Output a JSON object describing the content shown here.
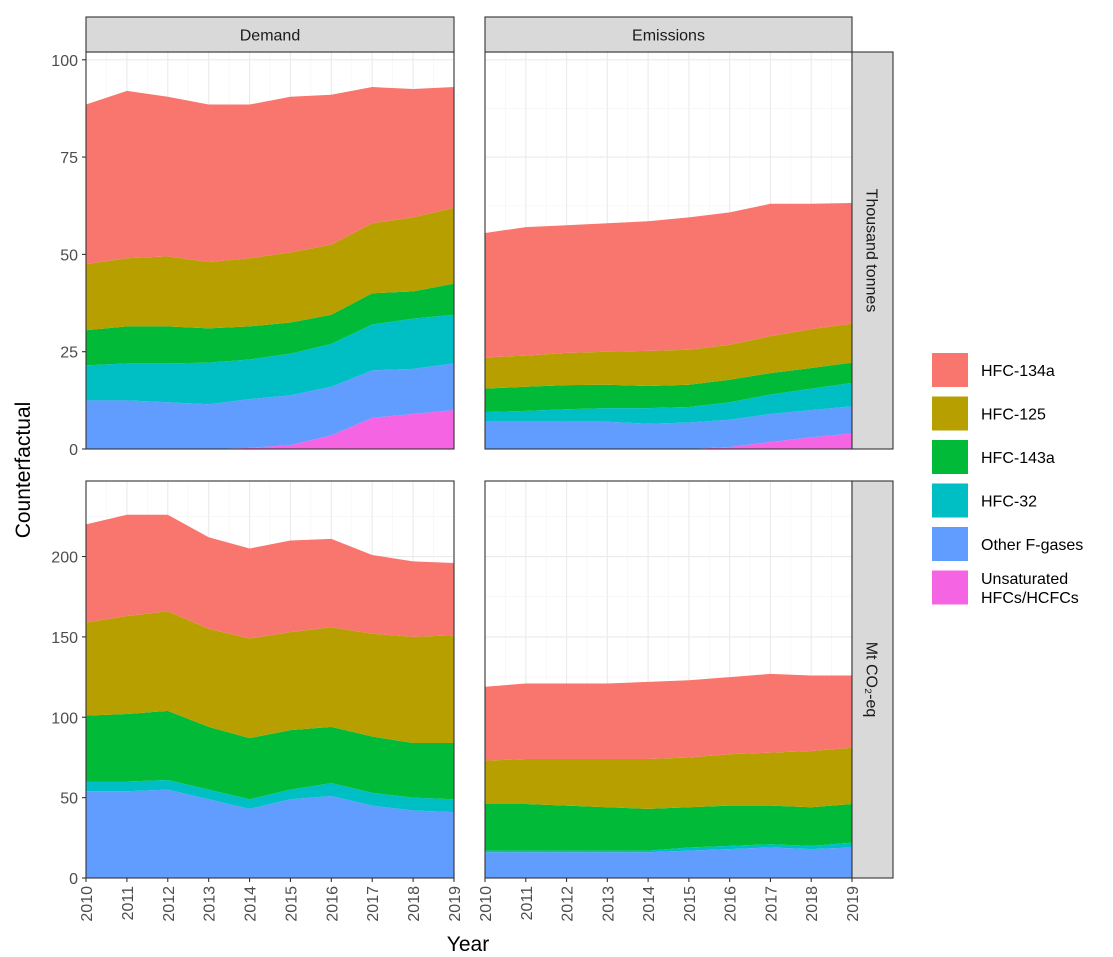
{
  "chart_data": {
    "type": "area",
    "stacked": true,
    "xlabel": "Year",
    "ylabel": "Counterfactual",
    "columns": [
      "Demand",
      "Emissions"
    ],
    "rows": [
      "Thousand tonnes",
      "Mt CO₂-eq"
    ],
    "x": [
      2010,
      2011,
      2012,
      2013,
      2014,
      2015,
      2016,
      2017,
      2018,
      2019
    ],
    "xlim": [
      2010,
      2019
    ],
    "grid": true,
    "legend_position": "right",
    "colors": {
      "HFC-134a": "#F8766D",
      "HFC-125": "#B79F00",
      "HFC-143a": "#00BA38",
      "HFC-32": "#00BFC4",
      "Other F-gases": "#619CFF",
      "Unsaturated HFCs/HCFCs": "#F564E3"
    },
    "legend": [
      {
        "key": "HFC-134a",
        "lines": [
          "HFC-134a"
        ]
      },
      {
        "key": "HFC-125",
        "lines": [
          "HFC-125"
        ]
      },
      {
        "key": "HFC-143a",
        "lines": [
          "HFC-143a"
        ]
      },
      {
        "key": "HFC-32",
        "lines": [
          "HFC-32"
        ]
      },
      {
        "key": "Other F-gases",
        "lines": [
          "Other F-gases"
        ]
      },
      {
        "key": "Unsaturated HFCs/HCFCs",
        "lines": [
          "Unsaturated",
          "HFCs/HCFCs"
        ]
      }
    ],
    "panels": [
      {
        "row": "Thousand tonnes",
        "col": "Demand",
        "ylim": [
          0,
          102
        ],
        "yticks": [
          0,
          25,
          50,
          75,
          100
        ],
        "series": [
          {
            "name": "Unsaturated HFCs/HCFCs",
            "values": [
              0,
              0,
              0,
              0,
              0.3,
              1.0,
              3.5,
              8.0,
              9.0,
              10.0
            ]
          },
          {
            "name": "Other F-gases",
            "values": [
              12.5,
              12.5,
              12.0,
              11.5,
              12.5,
              12.8,
              12.5,
              12.2,
              11.6,
              12.0
            ]
          },
          {
            "name": "HFC-32",
            "values": [
              9.0,
              9.5,
              10.0,
              10.7,
              10.2,
              10.7,
              11.0,
              11.8,
              12.9,
              12.5
            ]
          },
          {
            "name": "HFC-143a",
            "values": [
              9.0,
              9.5,
              9.5,
              8.8,
              8.5,
              8.0,
              7.5,
              8.0,
              7.0,
              8.0
            ]
          },
          {
            "name": "HFC-125",
            "values": [
              17.0,
              17.5,
              18.0,
              17.0,
              17.5,
              18.0,
              18.0,
              18.0,
              19.0,
              19.5
            ]
          },
          {
            "name": "HFC-134a",
            "values": [
              41.0,
              43.0,
              41.0,
              40.5,
              39.5,
              40.0,
              38.5,
              35.0,
              33.0,
              31.0
            ]
          }
        ]
      },
      {
        "row": "Thousand tonnes",
        "col": "Emissions",
        "ylim": [
          0,
          102
        ],
        "yticks": [
          0,
          25,
          50,
          75,
          100
        ],
        "series": [
          {
            "name": "Unsaturated HFCs/HCFCs",
            "values": [
              0,
              0,
              0,
              0,
              0,
              0,
              0.5,
              1.8,
              3.0,
              4.0
            ]
          },
          {
            "name": "Other F-gases",
            "values": [
              7.0,
              7.0,
              7.0,
              7.0,
              6.5,
              6.8,
              7.0,
              7.2,
              7.0,
              7.0
            ]
          },
          {
            "name": "HFC-32",
            "values": [
              2.5,
              2.8,
              3.2,
              3.5,
              4.0,
              4.0,
              4.5,
              5.0,
              5.5,
              6.0
            ]
          },
          {
            "name": "HFC-143a",
            "values": [
              6.0,
              6.2,
              6.2,
              6.0,
              5.7,
              5.7,
              5.8,
              5.5,
              5.3,
              5.2
            ]
          },
          {
            "name": "HFC-125",
            "values": [
              8.0,
              8.0,
              8.3,
              8.5,
              9.0,
              9.0,
              9.0,
              9.5,
              10.0,
              10.0
            ]
          },
          {
            "name": "HFC-134a",
            "values": [
              32.0,
              33.0,
              32.8,
              33.0,
              33.3,
              34.0,
              34.0,
              34.0,
              32.2,
              31.0
            ]
          }
        ]
      },
      {
        "row": "Mt CO₂-eq",
        "col": "Demand",
        "ylim": [
          0,
          247
        ],
        "yticks": [
          0,
          50,
          100,
          150,
          200
        ],
        "series": [
          {
            "name": "Unsaturated HFCs/HCFCs",
            "values": [
              0,
              0,
              0,
              0,
              0,
              0,
              0,
              0,
              0,
              0
            ]
          },
          {
            "name": "Other F-gases",
            "values": [
              54,
              54,
              55,
              49,
              43,
              49,
              51,
              45,
              42,
              41
            ]
          },
          {
            "name": "HFC-32",
            "values": [
              6,
              6,
              6,
              6,
              6,
              6,
              8,
              8,
              8,
              8
            ]
          },
          {
            "name": "HFC-143a",
            "values": [
              41,
              42,
              43,
              39,
              38,
              37,
              35,
              35,
              34,
              35
            ]
          },
          {
            "name": "HFC-125",
            "values": [
              58,
              61,
              62,
              61,
              62,
              61,
              62,
              64,
              66,
              67
            ]
          },
          {
            "name": "HFC-134a",
            "values": [
              61,
              63,
              60,
              57,
              56,
              57,
              55,
              49,
              47,
              45
            ]
          }
        ]
      },
      {
        "row": "Mt CO₂-eq",
        "col": "Emissions",
        "ylim": [
          0,
          247
        ],
        "yticks": [
          0,
          50,
          100,
          150,
          200
        ],
        "series": [
          {
            "name": "Unsaturated HFCs/HCFCs",
            "values": [
              0,
              0,
              0,
              0,
              0,
              0,
              0,
              0,
              0,
              0
            ]
          },
          {
            "name": "Other F-gases",
            "values": [
              16,
              16,
              16,
              16,
              16,
              17,
              18,
              19,
              18,
              19
            ]
          },
          {
            "name": "HFC-32",
            "values": [
              1,
              1,
              1,
              1,
              1,
              2,
              2,
              2,
              2,
              3
            ]
          },
          {
            "name": "HFC-143a",
            "values": [
              29,
              29,
              28,
              27,
              26,
              25,
              25,
              24,
              24,
              24
            ]
          },
          {
            "name": "HFC-125",
            "values": [
              27,
              28,
              29,
              30,
              31,
              31,
              32,
              33,
              35,
              35
            ]
          },
          {
            "name": "HFC-134a",
            "values": [
              46,
              47,
              47,
              47,
              48,
              48,
              48,
              49,
              47,
              45
            ]
          }
        ]
      }
    ]
  }
}
